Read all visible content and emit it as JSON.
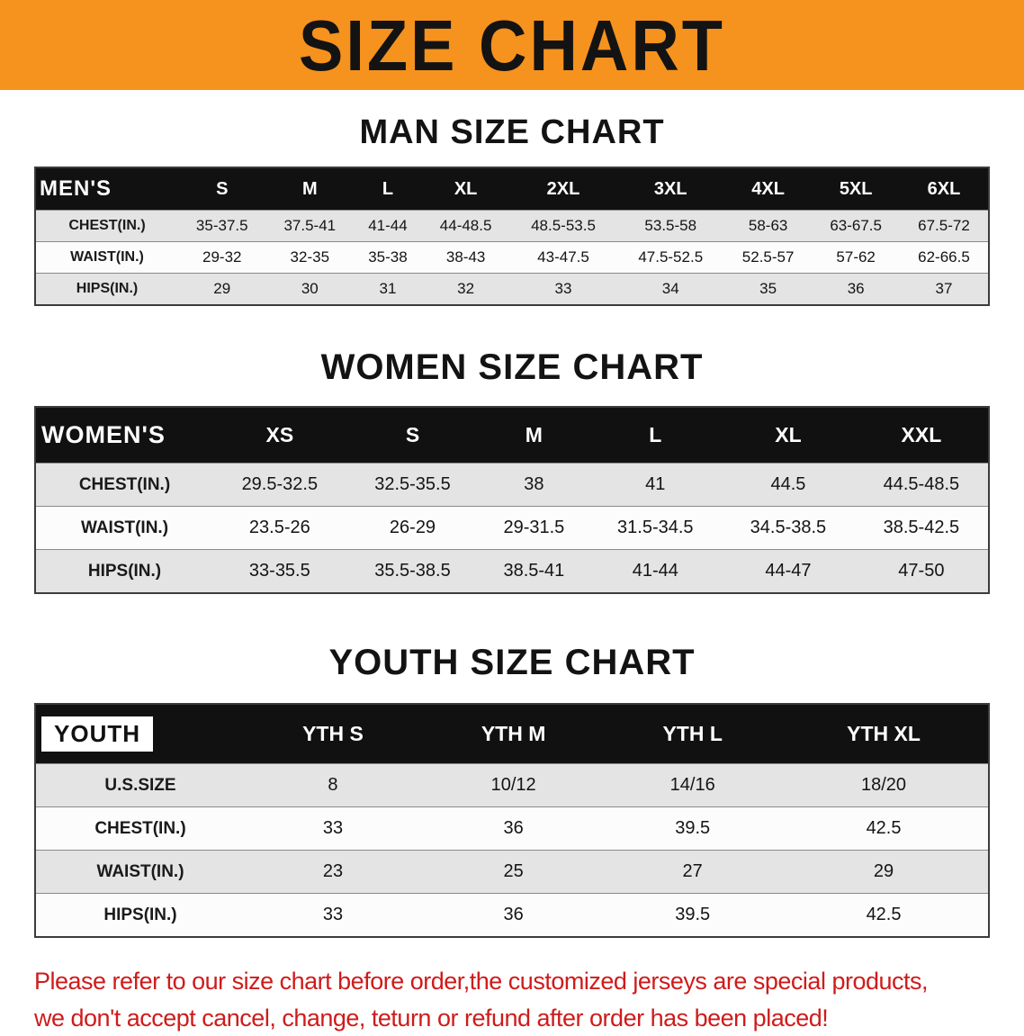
{
  "theme": {
    "accent_orange": "#F6921E",
    "header_black": "#111111",
    "row_gray": "#E4E4E4",
    "row_white": "#FCFCFC",
    "footer_red": "#CF1B1B"
  },
  "banner": {
    "title": "SIZE CHART"
  },
  "sections": [
    {
      "heading": "MAN SIZE CHART",
      "table": {
        "first_header_inverted": false,
        "header": [
          "MEN'S",
          "S",
          "M",
          "L",
          "XL",
          "2XL",
          "3XL",
          "4XL",
          "5XL",
          "6XL"
        ],
        "rows": [
          {
            "label": "CHEST(IN.)",
            "values": [
              "35-37.5",
              "37.5-41",
              "41-44",
              "44-48.5",
              "48.5-53.5",
              "53.5-58",
              "58-63",
              "63-67.5",
              "67.5-72"
            ]
          },
          {
            "label": "WAIST(IN.)",
            "values": [
              "29-32",
              "32-35",
              "35-38",
              "38-43",
              "43-47.5",
              "47.5-52.5",
              "52.5-57",
              "57-62",
              "62-66.5"
            ]
          },
          {
            "label": "HIPS(IN.)",
            "values": [
              "29",
              "30",
              "31",
              "32",
              "33",
              "34",
              "35",
              "36",
              "37"
            ]
          }
        ]
      }
    },
    {
      "heading": "WOMEN SIZE CHART",
      "table": {
        "first_header_inverted": false,
        "header": [
          "WOMEN'S",
          "XS",
          "S",
          "M",
          "L",
          "XL",
          "XXL"
        ],
        "rows": [
          {
            "label": "CHEST(IN.)",
            "values": [
              "29.5-32.5",
              "32.5-35.5",
              "38",
              "41",
              "44.5",
              "44.5-48.5"
            ]
          },
          {
            "label": "WAIST(IN.)",
            "values": [
              "23.5-26",
              "26-29",
              "29-31.5",
              "31.5-34.5",
              "34.5-38.5",
              "38.5-42.5"
            ]
          },
          {
            "label": "HIPS(IN.)",
            "values": [
              "33-35.5",
              "35.5-38.5",
              "38.5-41",
              "41-44",
              "44-47",
              "47-50"
            ]
          }
        ]
      }
    },
    {
      "heading": "YOUTH SIZE CHART",
      "table": {
        "first_header_inverted": true,
        "header": [
          "YOUTH",
          "YTH S",
          "YTH M",
          "YTH L",
          "YTH XL"
        ],
        "rows": [
          {
            "label": "U.S.SIZE",
            "values": [
              "8",
              "10/12",
              "14/16",
              "18/20"
            ]
          },
          {
            "label": "CHEST(IN.)",
            "values": [
              "33",
              "36",
              "39.5",
              "42.5"
            ]
          },
          {
            "label": "WAIST(IN.)",
            "values": [
              "23",
              "25",
              "27",
              "29"
            ]
          },
          {
            "label": "HIPS(IN.)",
            "values": [
              "33",
              "36",
              "39.5",
              "42.5"
            ]
          }
        ]
      }
    }
  ],
  "footer": {
    "line1": "Please refer to our size chart before order,the customized jerseys are special products,",
    "line2": "we don't accept cancel, change, teturn or refund after order has been placed!"
  }
}
